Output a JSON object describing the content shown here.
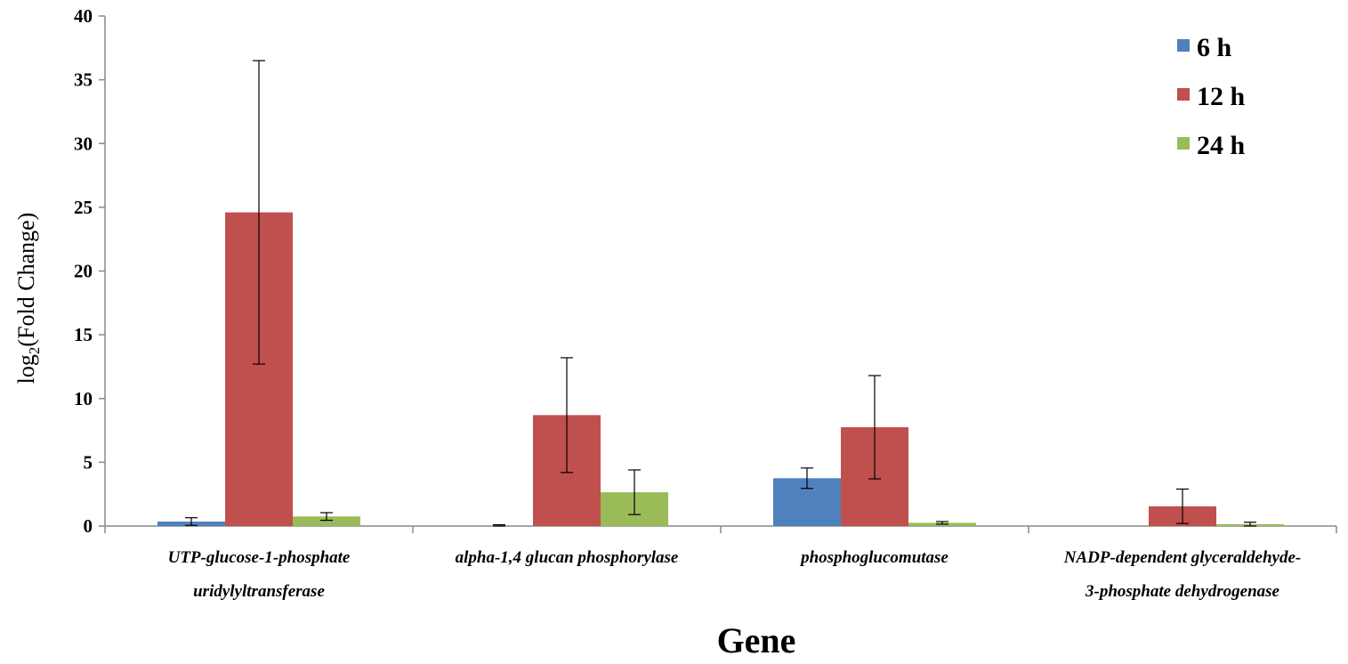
{
  "chart_data": {
    "type": "bar",
    "title": "",
    "xlabel": "Gene",
    "ylabel_parts": [
      "log",
      "2",
      "(Fold Change)"
    ],
    "ylim": [
      0,
      40
    ],
    "yticks": [
      0,
      5,
      10,
      15,
      20,
      25,
      30,
      35,
      40
    ],
    "categories": [
      [
        "UTP-glucose-1-phosphate",
        "uridylyltransferase"
      ],
      [
        "alpha-1,4 glucan phosphorylase"
      ],
      [
        "phosphoglucomutase"
      ],
      [
        "NADP-dependent glyceraldehyde-",
        "3-phosphate dehydrogenase"
      ]
    ],
    "series": [
      {
        "name": "6 h",
        "color": "#4f81bd",
        "values": [
          0.35,
          0.0,
          3.75,
          0.0
        ],
        "errors": [
          0.3,
          0.1,
          0.8,
          0.0
        ]
      },
      {
        "name": "12 h",
        "color": "#c0504d",
        "values": [
          24.6,
          8.7,
          7.75,
          1.55
        ],
        "errors": [
          11.9,
          4.5,
          4.05,
          1.35
        ]
      },
      {
        "name": "24 h",
        "color": "#9bbb59",
        "values": [
          0.75,
          2.65,
          0.25,
          0.15
        ],
        "errors": [
          0.3,
          1.75,
          0.1,
          0.15
        ]
      }
    ],
    "legend_position": "top-right",
    "grid": false
  }
}
